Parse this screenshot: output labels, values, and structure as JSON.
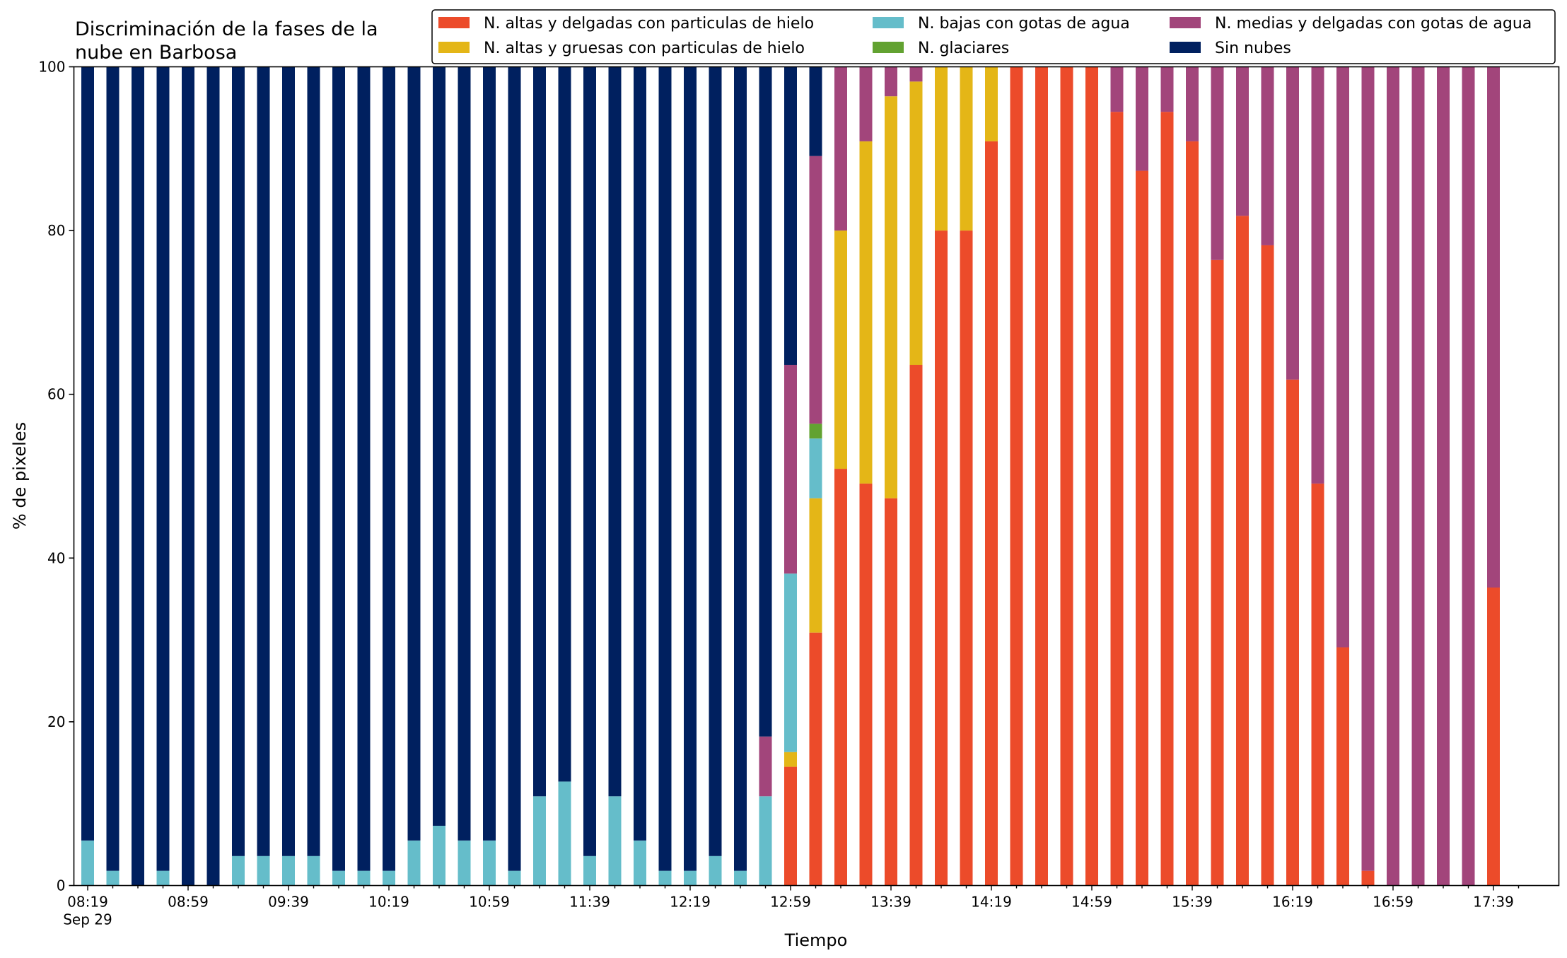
{
  "chart_data": {
    "type": "bar",
    "stacked": true,
    "title": "Discriminación de la fases de la nube en Barbosa",
    "title_lines": [
      "Discriminación de la fases de la",
      "nube en Barbosa"
    ],
    "xlabel": "Tiempo",
    "ylabel": "% de pixeles",
    "ylim": [
      0,
      100
    ],
    "yticks": [
      0,
      20,
      40,
      60,
      80,
      100
    ],
    "grid": false,
    "legend_position": "top-right",
    "x_start": "08:19",
    "x_step_minutes": 10,
    "x_tick_labels": [
      "08:19",
      "08:59",
      "09:39",
      "10:19",
      "10:59",
      "11:39",
      "12:19",
      "12:59",
      "13:39",
      "14:19",
      "14:59",
      "15:39",
      "16:19",
      "16:59",
      "17:39"
    ],
    "x_date_label": "Sep 29",
    "series": [
      {
        "name": "N. altas y delgadas con particulas de hielo",
        "color": "#ec4b2a",
        "values": [
          0,
          0,
          0,
          0,
          0,
          0,
          0,
          0,
          0,
          0,
          0,
          0,
          0,
          0,
          0,
          0,
          0,
          0,
          0,
          0,
          0,
          0,
          0,
          0,
          0,
          0,
          0,
          0,
          14.5,
          30.9,
          50.9,
          49.1,
          47.3,
          63.6,
          80,
          80,
          90.9,
          100,
          100,
          100,
          100,
          94.5,
          87.3,
          94.5,
          90.9,
          76.4,
          81.8,
          78.2,
          61.8,
          49.1,
          29.1,
          1.8,
          0,
          0,
          0,
          0,
          36.4
        ]
      },
      {
        "name": "N. altas y gruesas con particulas de hielo",
        "color": "#e4b617",
        "values": [
          0,
          0,
          0,
          0,
          0,
          0,
          0,
          0,
          0,
          0,
          0,
          0,
          0,
          0,
          0,
          0,
          0,
          0,
          0,
          0,
          0,
          0,
          0,
          0,
          0,
          0,
          0,
          0,
          1.8,
          16.4,
          29.1,
          41.8,
          49.1,
          34.6,
          20,
          20,
          9.1,
          0,
          0,
          0,
          0,
          0,
          0,
          0,
          0,
          0,
          0,
          0,
          0,
          0,
          0,
          0,
          0,
          0,
          0,
          0,
          0
        ]
      },
      {
        "name": "N. bajas con gotas de agua",
        "color": "#65bdca",
        "values": [
          5.5,
          1.8,
          0,
          1.8,
          0,
          0,
          3.6,
          3.6,
          3.6,
          3.6,
          1.8,
          1.8,
          1.8,
          5.5,
          7.3,
          5.5,
          5.5,
          1.8,
          10.9,
          12.7,
          3.6,
          10.9,
          5.5,
          1.8,
          1.8,
          3.6,
          1.8,
          10.9,
          21.8,
          7.3,
          0,
          0,
          0,
          0,
          0,
          0,
          0,
          0,
          0,
          0,
          0,
          0,
          0,
          0,
          0,
          0,
          0,
          0,
          0,
          0,
          0,
          0,
          0,
          0,
          0,
          0,
          0
        ]
      },
      {
        "name": "N. glaciares",
        "color": "#62a231",
        "values": [
          0,
          0,
          0,
          0,
          0,
          0,
          0,
          0,
          0,
          0,
          0,
          0,
          0,
          0,
          0,
          0,
          0,
          0,
          0,
          0,
          0,
          0,
          0,
          0,
          0,
          0,
          0,
          0,
          0,
          1.8,
          0,
          0,
          0,
          0,
          0,
          0,
          0,
          0,
          0,
          0,
          0,
          0,
          0,
          0,
          0,
          0,
          0,
          0,
          0,
          0,
          0,
          0,
          0,
          0,
          0,
          0,
          0
        ]
      },
      {
        "name": "N. medias y delgadas con gotas de agua",
        "color": "#a2457b",
        "values": [
          0,
          0,
          0,
          0,
          0,
          0,
          0,
          0,
          0,
          0,
          0,
          0,
          0,
          0,
          0,
          0,
          0,
          0,
          0,
          0,
          0,
          0,
          0,
          0,
          0,
          0,
          0,
          7.3,
          25.5,
          32.7,
          20,
          9.1,
          3.6,
          1.8,
          0,
          0,
          0,
          0,
          0,
          0,
          0,
          5.5,
          12.7,
          5.5,
          9.1,
          23.6,
          18.2,
          21.8,
          38.2,
          50.9,
          70.9,
          98.2,
          100,
          100,
          100,
          100,
          63.6
        ]
      },
      {
        "name": "Sin nubes",
        "color": "#00205f",
        "values": [
          94.5,
          98.2,
          100,
          98.2,
          100,
          100,
          96.4,
          96.4,
          96.4,
          96.4,
          98.2,
          98.2,
          98.2,
          94.5,
          92.7,
          94.5,
          94.5,
          98.2,
          89.1,
          87.3,
          96.4,
          89.1,
          94.5,
          98.2,
          98.2,
          96.4,
          98.2,
          81.8,
          36.4,
          10.9,
          0,
          0,
          0,
          0,
          0,
          0,
          0,
          0,
          0,
          0,
          0,
          0,
          0,
          0,
          0,
          0,
          0,
          0,
          0,
          0,
          0,
          0,
          0,
          0,
          0,
          0,
          0
        ]
      }
    ]
  }
}
